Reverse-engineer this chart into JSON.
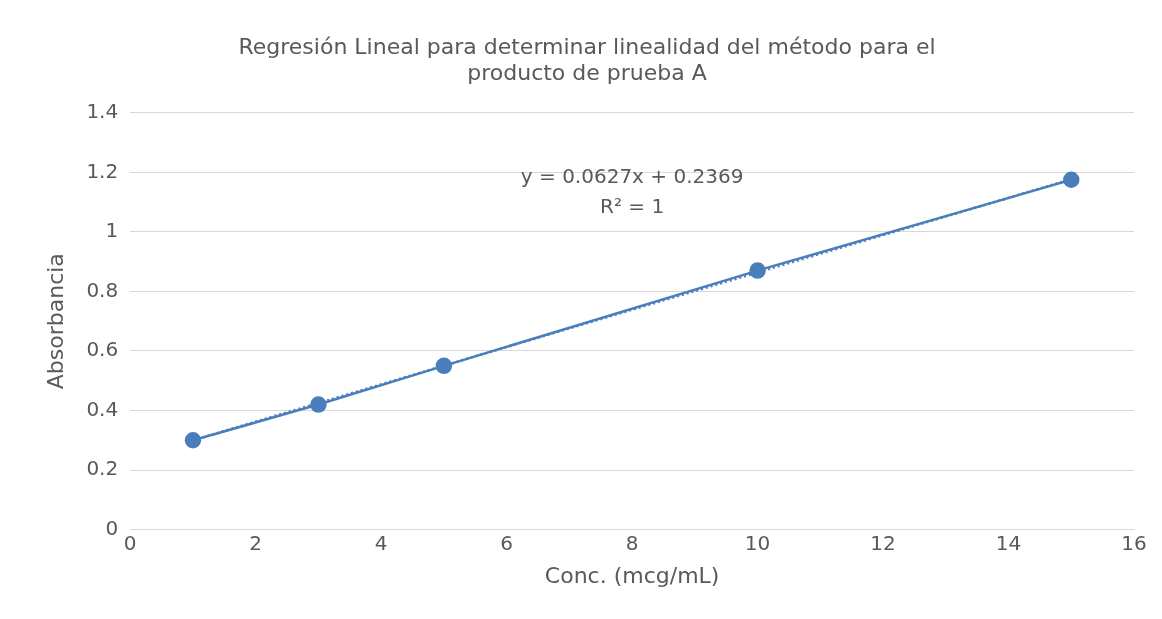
{
  "chart_data": {
    "type": "line",
    "title": "Regresión Lineal para determinar linealidad del método para el producto de prueba A",
    "xlabel": "Conc. (mcg/mL)",
    "ylabel": "Absorbancia",
    "annotations": [
      "y = 0.0627x + 0.2369",
      "R² = 1"
    ],
    "series": [
      {
        "type": "line",
        "color": "#4a7ebb",
        "x": [
          1,
          3,
          5,
          10,
          15
        ],
        "values": [
          0.3,
          0.42,
          0.55,
          0.87,
          1.175
        ],
        "marker": "circle",
        "line_style": "solid"
      },
      {
        "type": "line",
        "color": "#4a7ebb",
        "x": [
          1,
          15
        ],
        "values": [
          0.3,
          1.177
        ],
        "marker": "none",
        "line_style": "dotted"
      }
    ],
    "xlim": [
      0,
      16
    ],
    "xticks": [
      0,
      2,
      4,
      6,
      8,
      10,
      12,
      14,
      16
    ],
    "ylim": [
      0,
      1.4
    ],
    "yticks": [
      0,
      0.2,
      0.4,
      0.6,
      0.8,
      1,
      1.2,
      1.4
    ],
    "grid": "y",
    "legend": false
  }
}
